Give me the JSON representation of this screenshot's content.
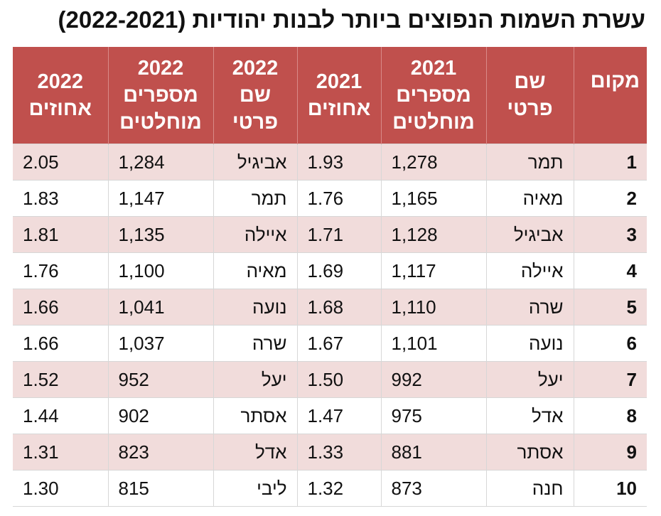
{
  "title": "עשרת השמות הנפוצים ביותר לבנות יהודיות (2022-2021)",
  "headers": {
    "rank": "מקום",
    "name_2021": "שם פרטי",
    "abs_2021": "2021 מספרים מוחלטים",
    "pct_2021": "2021 אחוזים",
    "name_2022": "2022 שם פרטי",
    "abs_2022": "2022 מספרים מוחלטים",
    "pct_2022": "2022 אחוזים"
  },
  "rows": [
    {
      "rank": "1",
      "name_2021": "תמר",
      "abs_2021": "1,278",
      "pct_2021": "1.93",
      "name_2022": "אביגיל",
      "abs_2022": "1,284",
      "pct_2022": "2.05"
    },
    {
      "rank": "2",
      "name_2021": "מאיה",
      "abs_2021": "1,165",
      "pct_2021": "1.76",
      "name_2022": "תמר",
      "abs_2022": "1,147",
      "pct_2022": "1.83"
    },
    {
      "rank": "3",
      "name_2021": "אביגיל",
      "abs_2021": "1,128",
      "pct_2021": "1.71",
      "name_2022": "איילה",
      "abs_2022": "1,135",
      "pct_2022": "1.81"
    },
    {
      "rank": "4",
      "name_2021": "איילה",
      "abs_2021": "1,117",
      "pct_2021": "1.69",
      "name_2022": "מאיה",
      "abs_2022": "1,100",
      "pct_2022": "1.76"
    },
    {
      "rank": "5",
      "name_2021": "שרה",
      "abs_2021": "1,110",
      "pct_2021": "1.68",
      "name_2022": "נועה",
      "abs_2022": "1,041",
      "pct_2022": "1.66"
    },
    {
      "rank": "6",
      "name_2021": "נועה",
      "abs_2021": "1,101",
      "pct_2021": "1.67",
      "name_2022": "שרה",
      "abs_2022": "1,037",
      "pct_2022": "1.66"
    },
    {
      "rank": "7",
      "name_2021": "יעל",
      "abs_2021": "992",
      "pct_2021": "1.50",
      "name_2022": "יעל",
      "abs_2022": "952",
      "pct_2022": "1.52"
    },
    {
      "rank": "8",
      "name_2021": "אדל",
      "abs_2021": "975",
      "pct_2021": "1.47",
      "name_2022": "אסתר",
      "abs_2022": "902",
      "pct_2022": "1.44"
    },
    {
      "rank": "9",
      "name_2021": "אסתר",
      "abs_2021": "881",
      "pct_2021": "1.33",
      "name_2022": "אדל",
      "abs_2022": "823",
      "pct_2022": "1.31"
    },
    {
      "rank": "10",
      "name_2021": "חנה",
      "abs_2021": "873",
      "pct_2021": "1.32",
      "name_2022": "ליבי",
      "abs_2022": "815",
      "pct_2022": "1.30"
    }
  ],
  "colors": {
    "header_bg": "#c0504d",
    "stripe_bg": "#f1dcdb"
  }
}
